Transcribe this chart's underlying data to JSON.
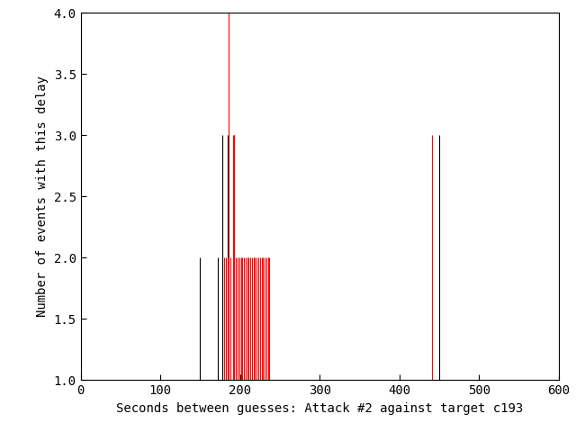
{
  "xlabel": "Seconds between guesses: Attack #2 against target c193",
  "ylabel": "Number of events with this delay",
  "xlim": [
    0,
    600
  ],
  "ylim": [
    1,
    4
  ],
  "yticks": [
    1,
    1.5,
    2,
    2.5,
    3,
    3.5,
    4
  ],
  "xticks": [
    0,
    100,
    200,
    300,
    400,
    500,
    600
  ],
  "red_lines": [
    [
      186,
      4
    ],
    [
      191,
      3
    ],
    [
      193,
      3
    ],
    [
      180,
      2
    ],
    [
      182,
      2
    ],
    [
      184,
      2
    ],
    [
      188,
      2
    ],
    [
      195,
      2
    ],
    [
      197,
      2
    ],
    [
      199,
      2
    ],
    [
      201,
      2
    ],
    [
      203,
      2
    ],
    [
      205,
      2
    ],
    [
      207,
      2
    ],
    [
      209,
      2
    ],
    [
      211,
      2
    ],
    [
      213,
      2
    ],
    [
      215,
      2
    ],
    [
      217,
      2
    ],
    [
      219,
      2
    ],
    [
      221,
      2
    ],
    [
      223,
      2
    ],
    [
      225,
      2
    ],
    [
      227,
      2
    ],
    [
      229,
      2
    ],
    [
      231,
      2
    ],
    [
      233,
      2
    ],
    [
      235,
      2
    ],
    [
      237,
      2
    ],
    [
      441,
      3
    ]
  ],
  "black_lines": [
    [
      150,
      2
    ],
    [
      172,
      2
    ],
    [
      178,
      3
    ],
    [
      185,
      3
    ],
    [
      192,
      3
    ],
    [
      450,
      3
    ]
  ],
  "bg_color": "#ffffff",
  "red_color": "#ff0000",
  "black_color": "#000000",
  "font_family": "monospace",
  "xlabel_fontsize": 10,
  "ylabel_fontsize": 10,
  "tick_fontsize": 10
}
